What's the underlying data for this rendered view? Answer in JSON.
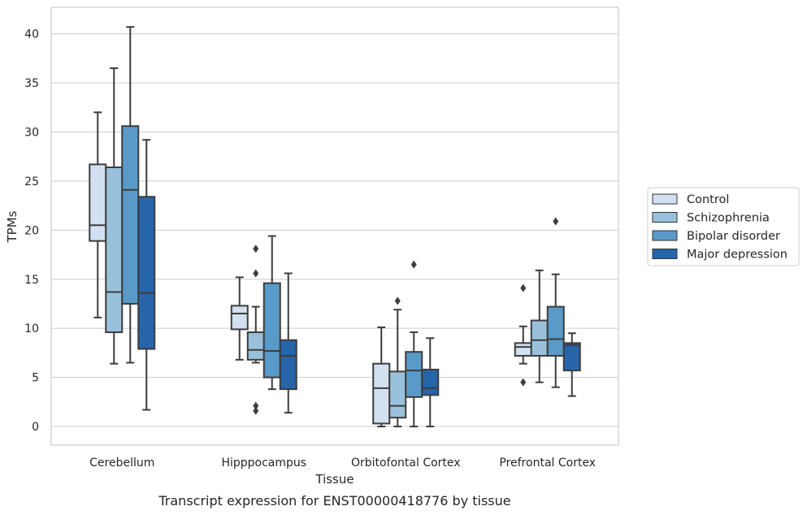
{
  "caption": "Transcript expression for ENST00000418776 by tissue",
  "chart_data": {
    "type": "box",
    "title": "",
    "xlabel": "Tissue",
    "ylabel": "TPMs",
    "ylim": [
      -1.9,
      42.7
    ],
    "yticks": [
      0,
      5,
      10,
      15,
      20,
      25,
      30,
      35,
      40
    ],
    "grid": true,
    "legend_position": "right",
    "categories": [
      "Cerebellum",
      "Hipppocampus",
      "Orbitofontal Cortex",
      "Prefrontal Cortex"
    ],
    "series": [
      {
        "name": "Control",
        "color": "#d2e0f1",
        "boxes": [
          {
            "whisker_low": 11.1,
            "q1": 18.9,
            "median": 20.5,
            "q3": 26.7,
            "whisker_high": 32.0,
            "outliers": []
          },
          {
            "whisker_low": 6.8,
            "q1": 9.9,
            "median": 11.5,
            "q3": 12.3,
            "whisker_high": 15.2,
            "outliers": []
          },
          {
            "whisker_low": 0.0,
            "q1": 0.3,
            "median": 3.9,
            "q3": 6.4,
            "whisker_high": 10.1,
            "outliers": []
          },
          {
            "whisker_low": 6.4,
            "q1": 7.2,
            "median": 8.1,
            "q3": 8.5,
            "whisker_high": 10.2,
            "outliers": [
              14.1,
              4.5
            ]
          }
        ]
      },
      {
        "name": "Schizophrenia",
        "color": "#9ac1dc",
        "boxes": [
          {
            "whisker_low": 6.4,
            "q1": 9.6,
            "median": 13.7,
            "q3": 26.4,
            "whisker_high": 36.5,
            "outliers": []
          },
          {
            "whisker_low": 6.5,
            "q1": 6.8,
            "median": 7.8,
            "q3": 9.6,
            "whisker_high": 12.2,
            "outliers": [
              18.1,
              15.6,
              2.1,
              1.6
            ]
          },
          {
            "whisker_low": 0.0,
            "q1": 0.9,
            "median": 2.1,
            "q3": 5.6,
            "whisker_high": 11.9,
            "outliers": [
              12.8
            ]
          },
          {
            "whisker_low": 4.5,
            "q1": 7.2,
            "median": 8.8,
            "q3": 10.8,
            "whisker_high": 15.9,
            "outliers": []
          }
        ]
      },
      {
        "name": "Bipolar disorder",
        "color": "#5a9ac8",
        "boxes": [
          {
            "whisker_low": 6.5,
            "q1": 12.5,
            "median": 24.1,
            "q3": 30.6,
            "whisker_high": 40.7,
            "outliers": []
          },
          {
            "whisker_low": 3.8,
            "q1": 5.0,
            "median": 7.7,
            "q3": 14.6,
            "whisker_high": 19.4,
            "outliers": []
          },
          {
            "whisker_low": 0.0,
            "q1": 3.0,
            "median": 5.7,
            "q3": 7.6,
            "whisker_high": 9.6,
            "outliers": [
              16.5
            ]
          },
          {
            "whisker_low": 4.0,
            "q1": 7.2,
            "median": 8.9,
            "q3": 12.2,
            "whisker_high": 15.5,
            "outliers": [
              20.9
            ]
          }
        ]
      },
      {
        "name": "Major depression",
        "color": "#2665a9",
        "boxes": [
          {
            "whisker_low": 1.7,
            "q1": 7.9,
            "median": 13.6,
            "q3": 23.4,
            "whisker_high": 29.2,
            "outliers": []
          },
          {
            "whisker_low": 1.4,
            "q1": 3.8,
            "median": 7.2,
            "q3": 8.8,
            "whisker_high": 15.6,
            "outliers": []
          },
          {
            "whisker_low": 0.0,
            "q1": 3.2,
            "median": 3.9,
            "q3": 5.8,
            "whisker_high": 9.0,
            "outliers": []
          },
          {
            "whisker_low": 3.1,
            "q1": 5.7,
            "median": 8.3,
            "q3": 8.5,
            "whisker_high": 9.5,
            "outliers": []
          }
        ]
      }
    ]
  }
}
